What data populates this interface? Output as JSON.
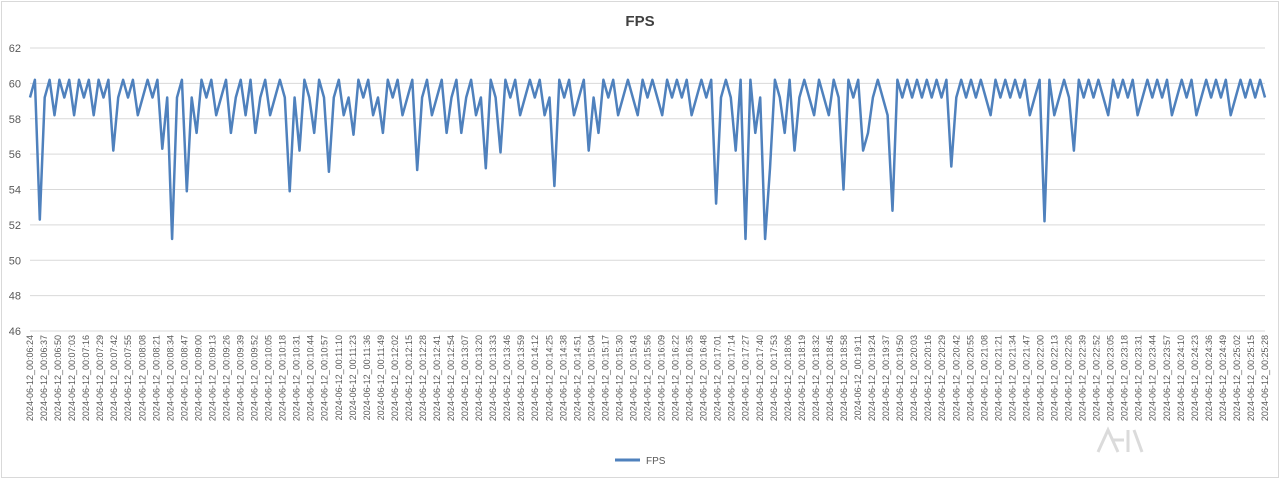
{
  "chart_data": {
    "type": "line",
    "title": "FPS",
    "xlabel": "",
    "ylabel": "",
    "ylim": [
      46,
      62
    ],
    "yticks": [
      46,
      48,
      50,
      52,
      54,
      56,
      58,
      60,
      62
    ],
    "grid": "horizontal",
    "legend_position": "bottom",
    "series_color": "#4f81bd",
    "x_tick_labels": [
      "2024-06-12_00:06:24",
      "2024-06-12_00:06:37",
      "2024-06-12_00:06:50",
      "2024-06-12_00:07:03",
      "2024-06-12_00:07:16",
      "2024-06-12_00:07:29",
      "2024-06-12_00:07:42",
      "2024-06-12_00:07:55",
      "2024-06-12_00:08:08",
      "2024-06-12_00:08:21",
      "2024-06-12_00:08:34",
      "2024-06-12_00:08:47",
      "2024-06-12_00:09:00",
      "2024-06-12_00:09:13",
      "2024-06-12_00:09:26",
      "2024-06-12_00:09:39",
      "2024-06-12_00:09:52",
      "2024-06-12_00:10:05",
      "2024-06-12_00:10:18",
      "2024-06-12_00:10:31",
      "2024-06-12_00:10:44",
      "2024-06-12_00:10:57",
      "2024-06-12_00:11:10",
      "2024-06-12_00:11:23",
      "2024-06-12_00:11:36",
      "2024-06-12_00:11:49",
      "2024-06-12_00:12:02",
      "2024-06-12_00:12:15",
      "2024-06-12_00:12:28",
      "2024-06-12_00:12:41",
      "2024-06-12_00:12:54",
      "2024-06-12_00:13:07",
      "2024-06-12_00:13:20",
      "2024-06-12_00:13:33",
      "2024-06-12_00:13:46",
      "2024-06-12_00:13:59",
      "2024-06-12_00:14:12",
      "2024-06-12_00:14:25",
      "2024-06-12_00:14:38",
      "2024-06-12_00:14:51",
      "2024-06-12_00:15:04",
      "2024-06-12_00:15:17",
      "2024-06-12_00:15:30",
      "2024-06-12_00:15:43",
      "2024-06-12_00:15:56",
      "2024-06-12_00:16:09",
      "2024-06-12_00:16:22",
      "2024-06-12_00:16:35",
      "2024-06-12_00:16:48",
      "2024-06-12_00:17:01",
      "2024-06-12_00:17:14",
      "2024-06-12_00:17:27",
      "2024-06-12_00:17:40",
      "2024-06-12_00:17:53",
      "2024-06-12_00:18:06",
      "2024-06-12_00:18:19",
      "2024-06-12_00:18:32",
      "2024-06-12_00:18:45",
      "2024-06-12_00:18:58",
      "2024-06-12_00:19:11",
      "2024-06-12_00:19:24",
      "2024-06-12_00:19:37",
      "2024-06-12_00:19:50",
      "2024-06-12_00:20:03",
      "2024-06-12_00:20:16",
      "2024-06-12_00:20:29",
      "2024-06-12_00:20:42",
      "2024-06-12_00:20:55",
      "2024-06-12_00:21:08",
      "2024-06-12_00:21:21",
      "2024-06-12_00:21:34",
      "2024-06-12_00:21:47",
      "2024-06-12_00:22:00",
      "2024-06-12_00:22:13",
      "2024-06-12_00:22:26",
      "2024-06-12_00:22:39",
      "2024-06-12_00:22:52",
      "2024-06-12_00:23:05",
      "2024-06-12_00:23:18",
      "2024-06-12_00:23:31",
      "2024-06-12_00:23:44",
      "2024-06-12_00:23:57",
      "2024-06-12_00:24:10",
      "2024-06-12_00:24:23",
      "2024-06-12_00:24:36",
      "2024-06-12_00:24:49",
      "2024-06-12_00:25:02",
      "2024-06-12_00:25:15",
      "2024-06-12_00:25:28"
    ],
    "series": [
      {
        "name": "FPS",
        "x_range": [
          "2024-06-12_00:06:24",
          "2024-06-12_00:25:28"
        ],
        "baseline": 59.2,
        "oscillation_high": 60.2,
        "values": [
          59.2,
          60.2,
          52.3,
          59.2,
          60.2,
          58.2,
          60.2,
          59.2,
          60.2,
          58.2,
          60.2,
          59.2,
          60.2,
          58.2,
          60.2,
          59.2,
          60.2,
          56.2,
          59.2,
          60.2,
          59.2,
          60.2,
          58.2,
          59.2,
          60.2,
          59.2,
          60.2,
          56.3,
          59.2,
          51.2,
          59.2,
          60.2,
          53.9,
          59.2,
          57.2,
          60.2,
          59.2,
          60.2,
          58.2,
          59.2,
          60.2,
          57.2,
          59.2,
          60.2,
          58.2,
          60.2,
          57.2,
          59.2,
          60.2,
          58.2,
          59.2,
          60.2,
          59.2,
          53.9,
          59.2,
          56.2,
          60.2,
          59.2,
          57.2,
          60.2,
          59.2,
          55.0,
          59.2,
          60.2,
          58.2,
          59.2,
          57.1,
          60.2,
          59.2,
          60.2,
          58.2,
          59.2,
          57.2,
          60.2,
          59.2,
          60.2,
          58.2,
          59.2,
          60.2,
          55.1,
          59.2,
          60.2,
          58.2,
          59.2,
          60.2,
          57.2,
          59.2,
          60.2,
          57.2,
          59.2,
          60.2,
          58.2,
          59.2,
          55.2,
          60.2,
          59.2,
          56.1,
          60.2,
          59.2,
          60.2,
          58.2,
          59.2,
          60.2,
          59.2,
          60.2,
          58.2,
          59.2,
          54.2,
          60.2,
          59.2,
          60.2,
          58.2,
          59.2,
          60.2,
          56.2,
          59.2,
          57.2,
          60.2,
          59.2,
          60.2,
          58.2,
          59.2,
          60.2,
          59.2,
          58.2,
          60.2,
          59.2,
          60.2,
          59.2,
          58.2,
          60.2,
          59.2,
          60.2,
          59.2,
          60.2,
          58.2,
          59.2,
          60.2,
          59.2,
          60.2,
          53.2,
          59.2,
          60.2,
          59.2,
          56.2,
          60.2,
          51.2,
          60.2,
          57.2,
          59.2,
          51.2,
          55.2,
          60.2,
          59.2,
          57.2,
          60.2,
          56.2,
          59.2,
          60.2,
          59.2,
          58.2,
          60.2,
          59.2,
          58.2,
          60.2,
          59.2,
          54.0,
          60.2,
          59.2,
          60.2,
          56.2,
          57.2,
          59.2,
          60.2,
          59.2,
          58.2,
          52.8,
          60.2,
          59.2,
          60.2,
          59.2,
          60.2,
          59.2,
          60.2,
          59.2,
          60.2,
          59.2,
          60.2,
          55.3,
          59.2,
          60.2,
          59.2,
          60.2,
          59.2,
          60.2,
          59.2,
          58.2,
          60.2,
          59.2,
          60.2,
          59.2,
          60.2,
          59.2,
          60.2,
          58.2,
          59.2,
          60.2,
          52.2,
          60.2,
          58.2,
          59.2,
          60.2,
          59.2,
          56.2,
          60.2,
          59.2,
          60.2,
          59.2,
          60.2,
          59.2,
          58.2,
          60.2,
          59.2,
          60.2,
          59.2,
          60.2,
          58.2,
          59.2,
          60.2,
          59.2,
          60.2,
          59.2,
          60.2,
          58.2,
          59.2,
          60.2,
          59.2,
          60.2,
          58.2,
          59.2,
          60.2,
          59.2,
          60.2,
          59.2,
          60.2,
          58.2,
          59.2,
          60.2,
          59.2,
          60.2,
          59.2,
          60.2,
          59.2
        ]
      }
    ]
  }
}
